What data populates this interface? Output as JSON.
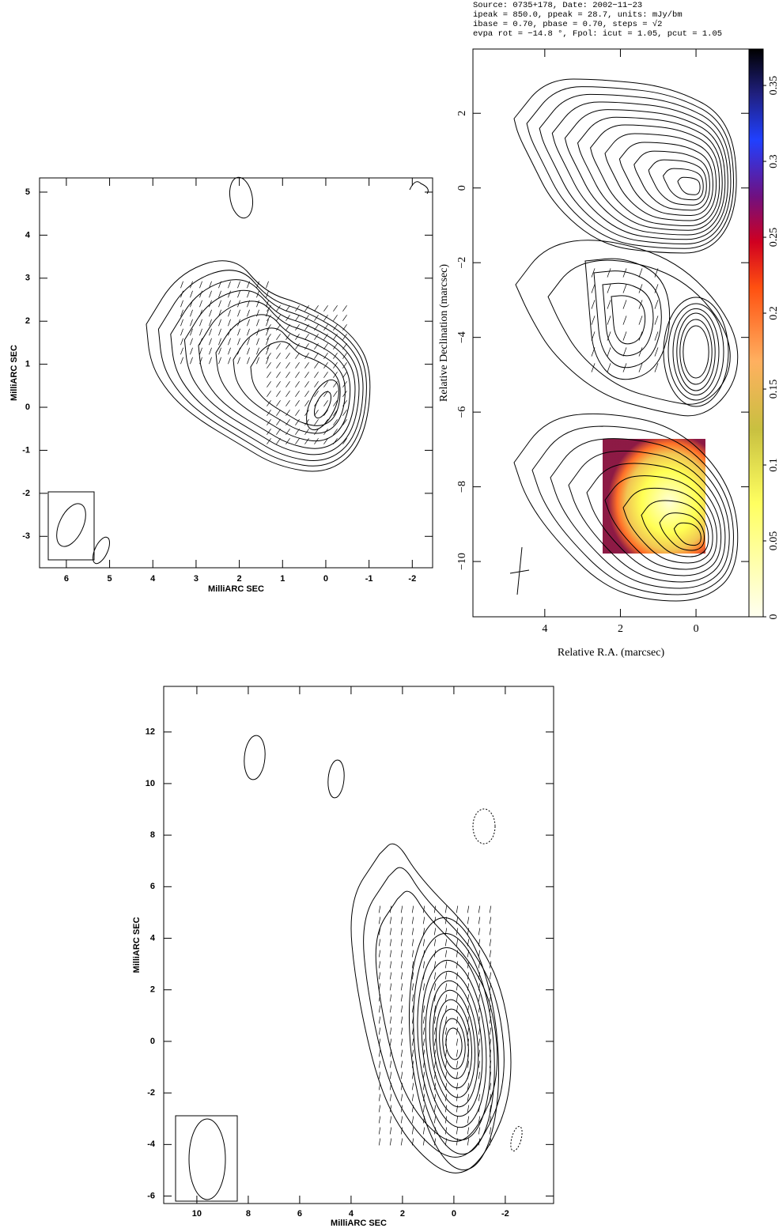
{
  "chart_data": [
    {
      "type": "contour",
      "xlabel": "MilliARC SEC",
      "ylabel": "MilliARC SEC",
      "xlim": [
        6.62,
        -2.47
      ],
      "ylim": [
        -3.73,
        5.33
      ],
      "xticks": [
        6,
        5,
        4,
        3,
        2,
        1,
        0,
        -1,
        -2
      ],
      "yticks": [
        5,
        4,
        3,
        2,
        1,
        0,
        -1,
        -2,
        -3
      ]
    },
    {
      "type": "contour",
      "header": [
        "Source: 0735+178, Date: 2002−11−23",
        "ipeak = 850.0, ppeak = 28.7, units: mJy/bm",
        "ibase = 0.70, pbase = 0.70, steps = √2",
        "evpa rot = −14.8 °, Fpol: icut = 1.05, pcut = 1.05"
      ],
      "xlabel": "Relative R.A. (marcsec)",
      "ylabel": "Relative Declination (marcsec)",
      "xlim": [
        5.9,
        -1.4
      ],
      "ylim": [
        -11.48,
        3.72
      ],
      "xticks": [
        4,
        2,
        0
      ],
      "yticks": [
        2,
        0,
        {
          "value": -2,
          "label": "−2"
        },
        {
          "value": -4,
          "label": "−4"
        },
        {
          "value": -6,
          "label": "−6"
        },
        {
          "value": -8,
          "label": "−8"
        },
        {
          "value": -10,
          "label": "−10"
        }
      ],
      "colorbar": {
        "lim": [
          0,
          0.374
        ],
        "ticks": [
          0,
          0.05,
          0.1,
          0.15,
          0.2,
          0.25,
          0.3,
          0.35
        ]
      }
    },
    {
      "type": "contour",
      "xlabel": "MilliARC SEC",
      "ylabel": "MilliARC SEC",
      "xlim": [
        11.29,
        -3.88
      ],
      "ylim": [
        -6.29,
        13.77
      ],
      "xticks": [
        10,
        8,
        6,
        4,
        2,
        0,
        -2
      ],
      "yticks": [
        12,
        10,
        8,
        6,
        4,
        2,
        0,
        -2,
        -4,
        -6
      ]
    }
  ]
}
